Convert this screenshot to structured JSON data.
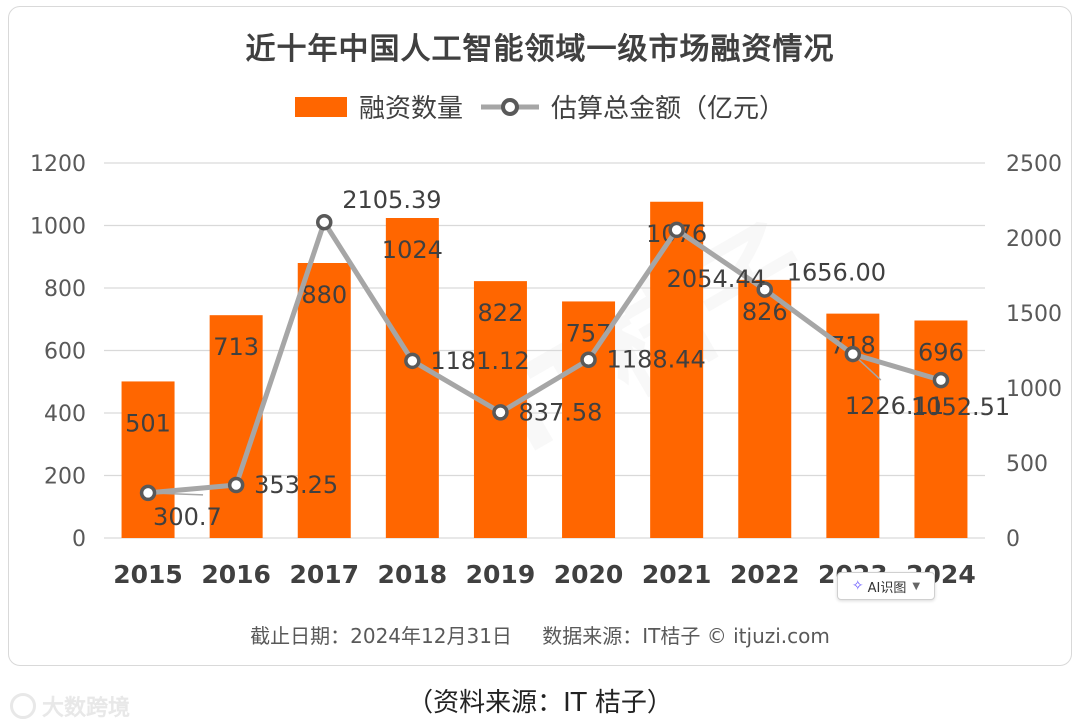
{
  "title": "近十年中国人工智能领域一级市场融资情况",
  "legend": {
    "bar_label": "融资数量",
    "line_label": "估算总金额（亿元）"
  },
  "footer": {
    "date": "截止日期：2024年12月31日",
    "source": "数据来源：IT桔子 © itjuzi.com"
  },
  "caption": "（资料来源：IT 桔子）",
  "watermark": "大数跨境",
  "chart_watermark": "IT桔子",
  "ai_button": {
    "label": "AI识图",
    "icon": "sparkle-icon"
  },
  "colors": {
    "bar": "#ff6600",
    "line": "#a6a6a6",
    "grid": "#d9d9d9"
  },
  "chart_data": {
    "type": "bar",
    "categories": [
      "2015",
      "2016",
      "2017",
      "2018",
      "2019",
      "2020",
      "2021",
      "2022",
      "2023",
      "2024"
    ],
    "series": [
      {
        "name": "融资数量",
        "type": "bar",
        "axis": "left",
        "values": [
          501,
          713,
          880,
          1024,
          822,
          757,
          1076,
          826,
          718,
          696
        ],
        "labels": [
          "501",
          "713",
          "880",
          "1024",
          "822",
          "757",
          "1076",
          "826",
          "718",
          "696"
        ]
      },
      {
        "name": "估算总金额（亿元）",
        "type": "line",
        "axis": "right",
        "values": [
          300.7,
          353.25,
          2105.39,
          1181.12,
          837.58,
          1188.44,
          2054.44,
          1656.0,
          1226.11,
          1052.51
        ],
        "labels": [
          "300.7",
          "353.25",
          "2105.39",
          "1181.12",
          "837.58",
          "1188.44",
          "2054.44",
          "1656.00",
          "1226.11",
          "1052.51"
        ]
      }
    ],
    "left_axis": {
      "ylim": [
        0,
        1200
      ],
      "ticks": [
        "0",
        "200",
        "400",
        "600",
        "800",
        "1000",
        "1200"
      ]
    },
    "right_axis": {
      "ylim": [
        0,
        2500
      ],
      "ticks": [
        "0",
        "500",
        "1000",
        "1500",
        "2000",
        "2500"
      ]
    },
    "grid": true,
    "legend_position": "top"
  }
}
